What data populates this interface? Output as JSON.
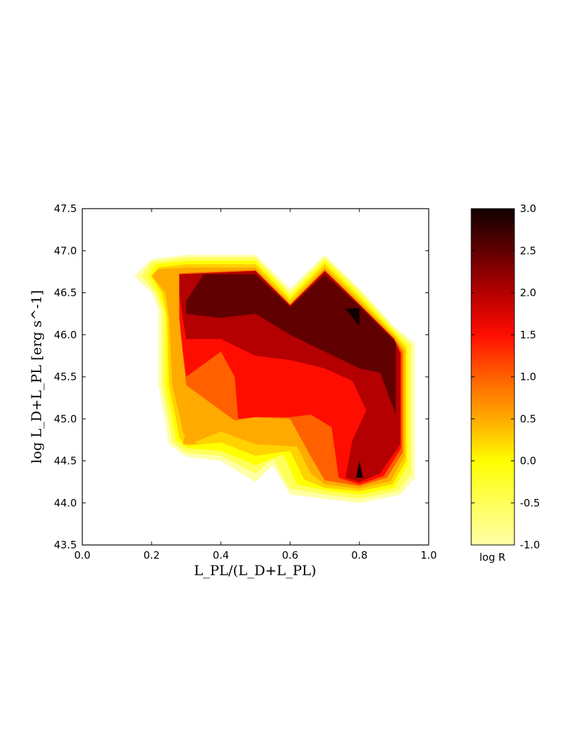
{
  "chart_data": {
    "type": "contourf",
    "title": "",
    "xlabel": "L_PL/(L_D+L_PL)",
    "ylabel": "log L_D+L_PL [erg s^-1]",
    "xlim": [
      0.0,
      1.0
    ],
    "ylim": [
      43.5,
      47.5
    ],
    "x_ticks": [
      "0.0",
      "0.2",
      "0.4",
      "0.6",
      "0.8",
      "1.0"
    ],
    "y_ticks": [
      "43.5",
      "44.0",
      "44.5",
      "45.0",
      "45.5",
      "46.0",
      "46.5",
      "47.0",
      "47.5"
    ],
    "colorbar": {
      "label": "log R",
      "range": [
        -1.0,
        3.0
      ],
      "ticks": [
        "-1.0",
        "-0.5",
        "0.0",
        "0.5",
        "1.0",
        "1.5",
        "2.0",
        "2.5",
        "3.0"
      ],
      "colormap": "hot_r"
    },
    "levels": [
      {
        "level": -1.0,
        "color": "#ffffa6"
      },
      {
        "level": -0.5,
        "color": "#ffff5a"
      },
      {
        "level": 0.0,
        "color": "#ffff00"
      },
      {
        "level": 0.25,
        "color": "#ffd200"
      },
      {
        "level": 0.5,
        "color": "#ffaa00"
      },
      {
        "level": 1.0,
        "color": "#ff6000"
      },
      {
        "level": 1.5,
        "color": "#ff0d00"
      },
      {
        "level": 2.0,
        "color": "#b40000"
      },
      {
        "level": 2.5,
        "color": "#600000"
      },
      {
        "level": 3.0,
        "color": "#110000"
      }
    ],
    "regions": [
      {
        "level": -1.0,
        "points": [
          [
            0.15,
            46.7
          ],
          [
            0.2,
            46.9
          ],
          [
            0.3,
            46.95
          ],
          [
            0.5,
            46.95
          ],
          [
            0.6,
            46.55
          ],
          [
            0.7,
            46.95
          ],
          [
            0.8,
            46.55
          ],
          [
            0.9,
            46.1
          ],
          [
            0.96,
            45.9
          ],
          [
            0.96,
            44.3
          ],
          [
            0.92,
            44.1
          ],
          [
            0.8,
            44.0
          ],
          [
            0.7,
            44.05
          ],
          [
            0.6,
            44.1
          ],
          [
            0.55,
            44.45
          ],
          [
            0.5,
            44.25
          ],
          [
            0.4,
            44.5
          ],
          [
            0.3,
            44.55
          ],
          [
            0.25,
            44.7
          ],
          [
            0.24,
            44.95
          ],
          [
            0.22,
            45.4
          ],
          [
            0.22,
            46.3
          ],
          [
            0.2,
            46.5
          ]
        ]
      },
      {
        "level": -0.5,
        "points": [
          [
            0.17,
            46.7
          ],
          [
            0.2,
            46.87
          ],
          [
            0.3,
            46.92
          ],
          [
            0.5,
            46.92
          ],
          [
            0.6,
            46.5
          ],
          [
            0.7,
            46.92
          ],
          [
            0.8,
            46.52
          ],
          [
            0.9,
            46.07
          ],
          [
            0.95,
            45.88
          ],
          [
            0.95,
            44.35
          ],
          [
            0.91,
            44.14
          ],
          [
            0.8,
            44.05
          ],
          [
            0.7,
            44.1
          ],
          [
            0.6,
            44.17
          ],
          [
            0.55,
            44.52
          ],
          [
            0.5,
            44.35
          ],
          [
            0.4,
            44.56
          ],
          [
            0.3,
            44.6
          ],
          [
            0.26,
            44.72
          ],
          [
            0.25,
            44.97
          ],
          [
            0.23,
            45.4
          ],
          [
            0.23,
            46.28
          ],
          [
            0.21,
            46.5
          ]
        ]
      },
      {
        "level": 0.0,
        "points": [
          [
            0.19,
            46.7
          ],
          [
            0.21,
            46.84
          ],
          [
            0.3,
            46.88
          ],
          [
            0.5,
            46.88
          ],
          [
            0.6,
            46.46
          ],
          [
            0.7,
            46.88
          ],
          [
            0.8,
            46.48
          ],
          [
            0.9,
            46.04
          ],
          [
            0.94,
            45.86
          ],
          [
            0.94,
            44.45
          ],
          [
            0.9,
            44.18
          ],
          [
            0.8,
            44.1
          ],
          [
            0.7,
            44.15
          ],
          [
            0.62,
            44.22
          ],
          [
            0.58,
            44.58
          ],
          [
            0.5,
            44.45
          ],
          [
            0.4,
            44.62
          ],
          [
            0.3,
            44.65
          ],
          [
            0.27,
            44.75
          ],
          [
            0.26,
            45.0
          ],
          [
            0.24,
            45.4
          ],
          [
            0.24,
            46.25
          ],
          [
            0.22,
            46.5
          ]
        ]
      },
      {
        "level": 0.25,
        "points": [
          [
            0.2,
            46.7
          ],
          [
            0.22,
            46.8
          ],
          [
            0.3,
            46.84
          ],
          [
            0.5,
            46.84
          ],
          [
            0.6,
            46.42
          ],
          [
            0.7,
            46.84
          ],
          [
            0.8,
            46.44
          ],
          [
            0.9,
            46.01
          ],
          [
            0.935,
            45.84
          ],
          [
            0.935,
            44.5
          ],
          [
            0.895,
            44.22
          ],
          [
            0.8,
            44.14
          ],
          [
            0.7,
            44.18
          ],
          [
            0.64,
            44.28
          ],
          [
            0.6,
            44.62
          ],
          [
            0.5,
            44.56
          ],
          [
            0.4,
            44.72
          ],
          [
            0.3,
            44.68
          ],
          [
            0.28,
            44.78
          ],
          [
            0.27,
            45.0
          ],
          [
            0.25,
            45.4
          ],
          [
            0.245,
            46.22
          ],
          [
            0.23,
            46.5
          ]
        ]
      },
      {
        "level": 0.5,
        "points": [
          [
            0.2,
            46.7
          ],
          [
            0.22,
            46.78
          ],
          [
            0.3,
            46.8
          ],
          [
            0.5,
            46.8
          ],
          [
            0.6,
            46.38
          ],
          [
            0.7,
            46.8
          ],
          [
            0.8,
            46.4
          ],
          [
            0.9,
            45.98
          ],
          [
            0.93,
            45.82
          ],
          [
            0.93,
            44.55
          ],
          [
            0.89,
            44.26
          ],
          [
            0.8,
            44.17
          ],
          [
            0.7,
            44.22
          ],
          [
            0.66,
            44.35
          ],
          [
            0.62,
            44.67
          ],
          [
            0.5,
            44.7
          ],
          [
            0.4,
            44.85
          ],
          [
            0.31,
            44.7
          ],
          [
            0.29,
            44.85
          ],
          [
            0.28,
            45.05
          ],
          [
            0.26,
            45.4
          ],
          [
            0.25,
            46.2
          ],
          [
            0.24,
            46.5
          ]
        ]
      },
      {
        "level": 1.0,
        "points": [
          [
            0.28,
            46.73
          ],
          [
            0.5,
            46.77
          ],
          [
            0.6,
            46.36
          ],
          [
            0.7,
            46.77
          ],
          [
            0.8,
            46.37
          ],
          [
            0.9,
            45.96
          ],
          [
            0.925,
            45.8
          ],
          [
            0.925,
            44.6
          ],
          [
            0.88,
            44.3
          ],
          [
            0.8,
            44.2
          ],
          [
            0.7,
            44.27
          ],
          [
            0.66,
            44.55
          ],
          [
            0.6,
            45.0
          ],
          [
            0.5,
            45.02
          ],
          [
            0.44,
            44.98
          ],
          [
            0.4,
            45.1
          ],
          [
            0.3,
            45.4
          ],
          [
            0.29,
            45.8
          ],
          [
            0.28,
            46.2
          ]
        ]
      },
      {
        "level": 1.5,
        "points": [
          [
            0.28,
            46.72
          ],
          [
            0.5,
            46.76
          ],
          [
            0.6,
            46.35
          ],
          [
            0.7,
            46.76
          ],
          [
            0.8,
            46.36
          ],
          [
            0.9,
            45.95
          ],
          [
            0.92,
            45.78
          ],
          [
            0.92,
            44.65
          ],
          [
            0.87,
            44.32
          ],
          [
            0.8,
            44.22
          ],
          [
            0.74,
            44.3
          ],
          [
            0.72,
            44.9
          ],
          [
            0.66,
            45.05
          ],
          [
            0.6,
            45.02
          ],
          [
            0.5,
            45.02
          ],
          [
            0.45,
            45.0
          ],
          [
            0.44,
            45.5
          ],
          [
            0.4,
            45.8
          ],
          [
            0.3,
            45.5
          ],
          [
            0.29,
            45.8
          ],
          [
            0.28,
            46.2
          ]
        ]
      },
      {
        "level": 2.0,
        "points": [
          [
            0.28,
            46.72
          ],
          [
            0.5,
            46.76
          ],
          [
            0.6,
            46.35
          ],
          [
            0.7,
            46.76
          ],
          [
            0.8,
            46.36
          ],
          [
            0.9,
            45.95
          ],
          [
            0.918,
            45.78
          ],
          [
            0.918,
            44.7
          ],
          [
            0.86,
            44.35
          ],
          [
            0.8,
            44.25
          ],
          [
            0.76,
            44.3
          ],
          [
            0.78,
            44.75
          ],
          [
            0.82,
            45.1
          ],
          [
            0.78,
            45.45
          ],
          [
            0.7,
            45.6
          ],
          [
            0.6,
            45.7
          ],
          [
            0.5,
            45.75
          ],
          [
            0.4,
            45.95
          ],
          [
            0.3,
            45.95
          ],
          [
            0.29,
            46.2
          ],
          [
            0.28,
            46.5
          ]
        ]
      },
      {
        "level": 2.5,
        "points": [
          [
            0.35,
            46.72
          ],
          [
            0.5,
            46.72
          ],
          [
            0.6,
            46.33
          ],
          [
            0.7,
            46.72
          ],
          [
            0.8,
            46.34
          ],
          [
            0.9,
            45.93
          ],
          [
            0.905,
            45.9
          ],
          [
            0.905,
            45.05
          ],
          [
            0.86,
            45.55
          ],
          [
            0.8,
            45.6
          ],
          [
            0.7,
            45.8
          ],
          [
            0.6,
            46.0
          ],
          [
            0.5,
            46.25
          ],
          [
            0.4,
            46.2
          ],
          [
            0.3,
            46.25
          ],
          [
            0.3,
            46.4
          ]
        ]
      },
      {
        "level": 3.0,
        "points": [
          [
            0.76,
            46.31
          ],
          [
            0.8,
            46.32
          ],
          [
            0.8,
            46.1
          ]
        ]
      },
      {
        "level": 3.0,
        "points": [
          [
            0.79,
            44.3
          ],
          [
            0.81,
            44.3
          ],
          [
            0.8,
            44.5
          ]
        ]
      },
      {
        "level": 0.5,
        "points": [
          [
            0.29,
            44.7
          ],
          [
            0.33,
            44.7
          ],
          [
            0.3,
            44.85
          ]
        ]
      }
    ]
  }
}
